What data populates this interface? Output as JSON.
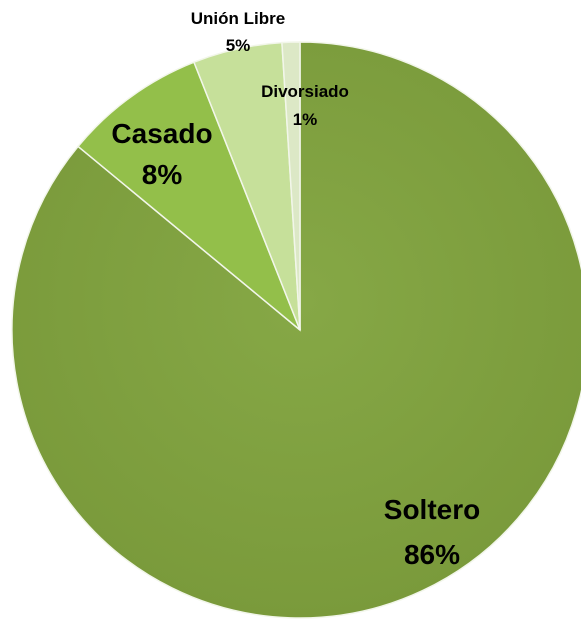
{
  "chart_data": {
    "type": "pie",
    "title": "",
    "slices": [
      {
        "label": "Soltero",
        "percent_label": "86%",
        "value": 86,
        "color": "#7fa13d"
      },
      {
        "label": "Casado",
        "percent_label": "8%",
        "value": 8,
        "color": "#93bf4a"
      },
      {
        "label": "Unión Libre",
        "percent_label": "5%",
        "value": 5,
        "color": "#c6e09a"
      },
      {
        "label": "Divorsiado",
        "percent_label": "1%",
        "value": 1,
        "color": "#dce8c6"
      }
    ]
  }
}
